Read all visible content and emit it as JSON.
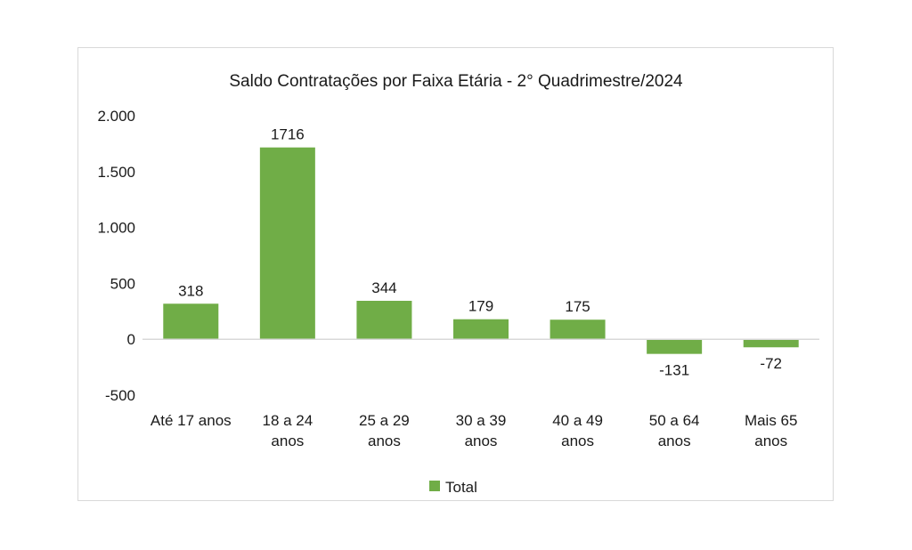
{
  "chart_data": {
    "type": "bar",
    "title": "Saldo Contratações por Faixa Etária - 2° Quadrimestre/2024",
    "categories": [
      [
        "Até 17 anos"
      ],
      [
        "18 a 24",
        "anos"
      ],
      [
        "25 a 29",
        "anos"
      ],
      [
        "30 a 39",
        "anos"
      ],
      [
        "40 a 49",
        "anos"
      ],
      [
        "50 a 64",
        "anos"
      ],
      [
        "Mais 65",
        "anos"
      ]
    ],
    "series": [
      {
        "name": "Total",
        "values": [
          318,
          1716,
          344,
          179,
          175,
          -131,
          -72
        ],
        "color": "#70ad47"
      }
    ],
    "data_labels": [
      "318",
      "1716",
      "344",
      "179",
      "175",
      "-131",
      "-72"
    ],
    "ylim": [
      -500,
      2000
    ],
    "yticks": [
      -500,
      0,
      500,
      1000,
      1500,
      2000
    ],
    "ytick_labels": [
      "-500",
      "0",
      "500",
      "1.000",
      "1.500",
      "2.000"
    ],
    "xlabel": "",
    "ylabel": "",
    "grid": false,
    "legend": "bottom"
  }
}
